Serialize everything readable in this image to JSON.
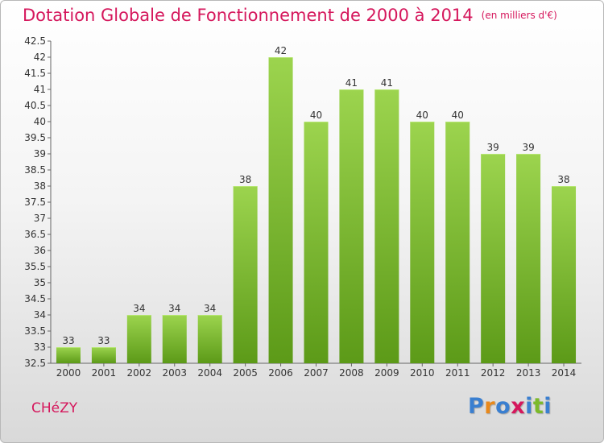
{
  "title": "Dotation Globale de Fonctionnement de 2000 à 2014",
  "subtitle": "(en milliers d'€)",
  "commune": "CHéZY",
  "logo": {
    "text": "Proxiti",
    "colors": [
      "#3a7fd0",
      "#e8891c",
      "#3a7fd0",
      "#d5175c",
      "#3a7fd0",
      "#7cba2a",
      "#3a7fd0"
    ]
  },
  "colors": {
    "title": "#d5175c",
    "bar_light": "#9cd44e",
    "bar_dark": "#5c9a18"
  },
  "chart_data": {
    "type": "bar",
    "title": "Dotation Globale de Fonctionnement de 2000 à 2014",
    "categories": [
      "2000",
      "2001",
      "2002",
      "2003",
      "2004",
      "2005",
      "2006",
      "2007",
      "2008",
      "2009",
      "2010",
      "2011",
      "2012",
      "2013",
      "2014"
    ],
    "values": [
      33,
      33,
      34,
      34,
      34,
      38,
      42,
      40,
      41,
      41,
      40,
      40,
      39,
      39,
      38
    ],
    "ylim": [
      32.5,
      42.5
    ],
    "yticks": [
      "32.5",
      "33",
      "33.5",
      "34",
      "34.5",
      "35",
      "35.5",
      "36",
      "36.5",
      "37",
      "37.5",
      "38",
      "38.5",
      "39",
      "39.5",
      "40",
      "40.5",
      "41",
      "41.5",
      "42",
      "42.5"
    ],
    "grid": false,
    "xlabel": "",
    "ylabel": ""
  }
}
